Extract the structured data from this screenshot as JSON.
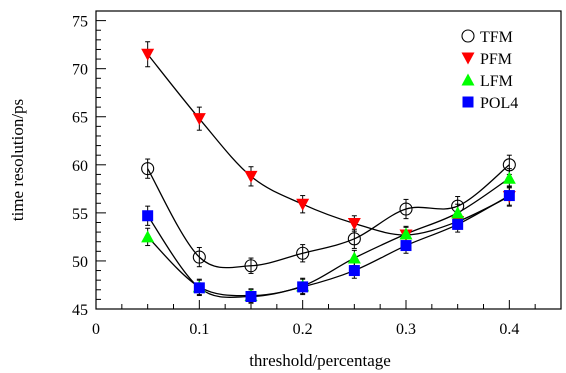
{
  "chart_data": {
    "type": "line",
    "title": "",
    "xlabel": "threshold/percentage",
    "ylabel": "time resolution/ps",
    "xlim": [
      0,
      0.45
    ],
    "ylim": [
      45,
      76
    ],
    "x_ticks": [
      0,
      0.1,
      0.2,
      0.3,
      0.4
    ],
    "x_tick_labels": [
      "0",
      "0.1",
      "0.2",
      "0.3",
      "0.4"
    ],
    "y_ticks": [
      45,
      50,
      55,
      60,
      65,
      70,
      75
    ],
    "y_tick_labels": [
      "45",
      "50",
      "55",
      "60",
      "65",
      "70",
      "75"
    ],
    "grid": false,
    "legend_position": "top-right",
    "x": [
      0.05,
      0.1,
      0.15,
      0.2,
      0.25,
      0.3,
      0.35,
      0.4
    ],
    "series": [
      {
        "name": "TFM",
        "marker": "open-circle",
        "color": "#000000",
        "values": [
          59.6,
          50.4,
          49.5,
          50.8,
          52.3,
          55.4,
          55.7,
          60.0
        ],
        "errors": [
          1.0,
          1.0,
          0.8,
          0.9,
          1.0,
          1.0,
          1.0,
          1.0
        ]
      },
      {
        "name": "PFM",
        "marker": "down-triangle",
        "color": "#ff0000",
        "values": [
          71.5,
          64.8,
          58.8,
          55.9,
          53.9,
          52.7,
          54.1,
          56.7
        ],
        "errors": [
          1.3,
          1.2,
          1.0,
          0.9,
          0.8,
          0.8,
          0.8,
          1.0
        ]
      },
      {
        "name": "LFM",
        "marker": "up-triangle",
        "color": "#00ff00",
        "values": [
          52.5,
          47.3,
          46.4,
          47.4,
          50.3,
          52.8,
          55.0,
          58.6
        ],
        "errors": [
          0.9,
          0.8,
          0.7,
          0.8,
          0.8,
          0.8,
          0.9,
          1.0
        ]
      },
      {
        "name": "POL4",
        "marker": "square",
        "color": "#0000ff",
        "values": [
          54.7,
          47.2,
          46.3,
          47.3,
          49.0,
          51.6,
          53.8,
          56.8
        ],
        "errors": [
          1.0,
          0.8,
          0.7,
          0.8,
          0.8,
          0.8,
          0.8,
          1.0
        ]
      }
    ]
  }
}
